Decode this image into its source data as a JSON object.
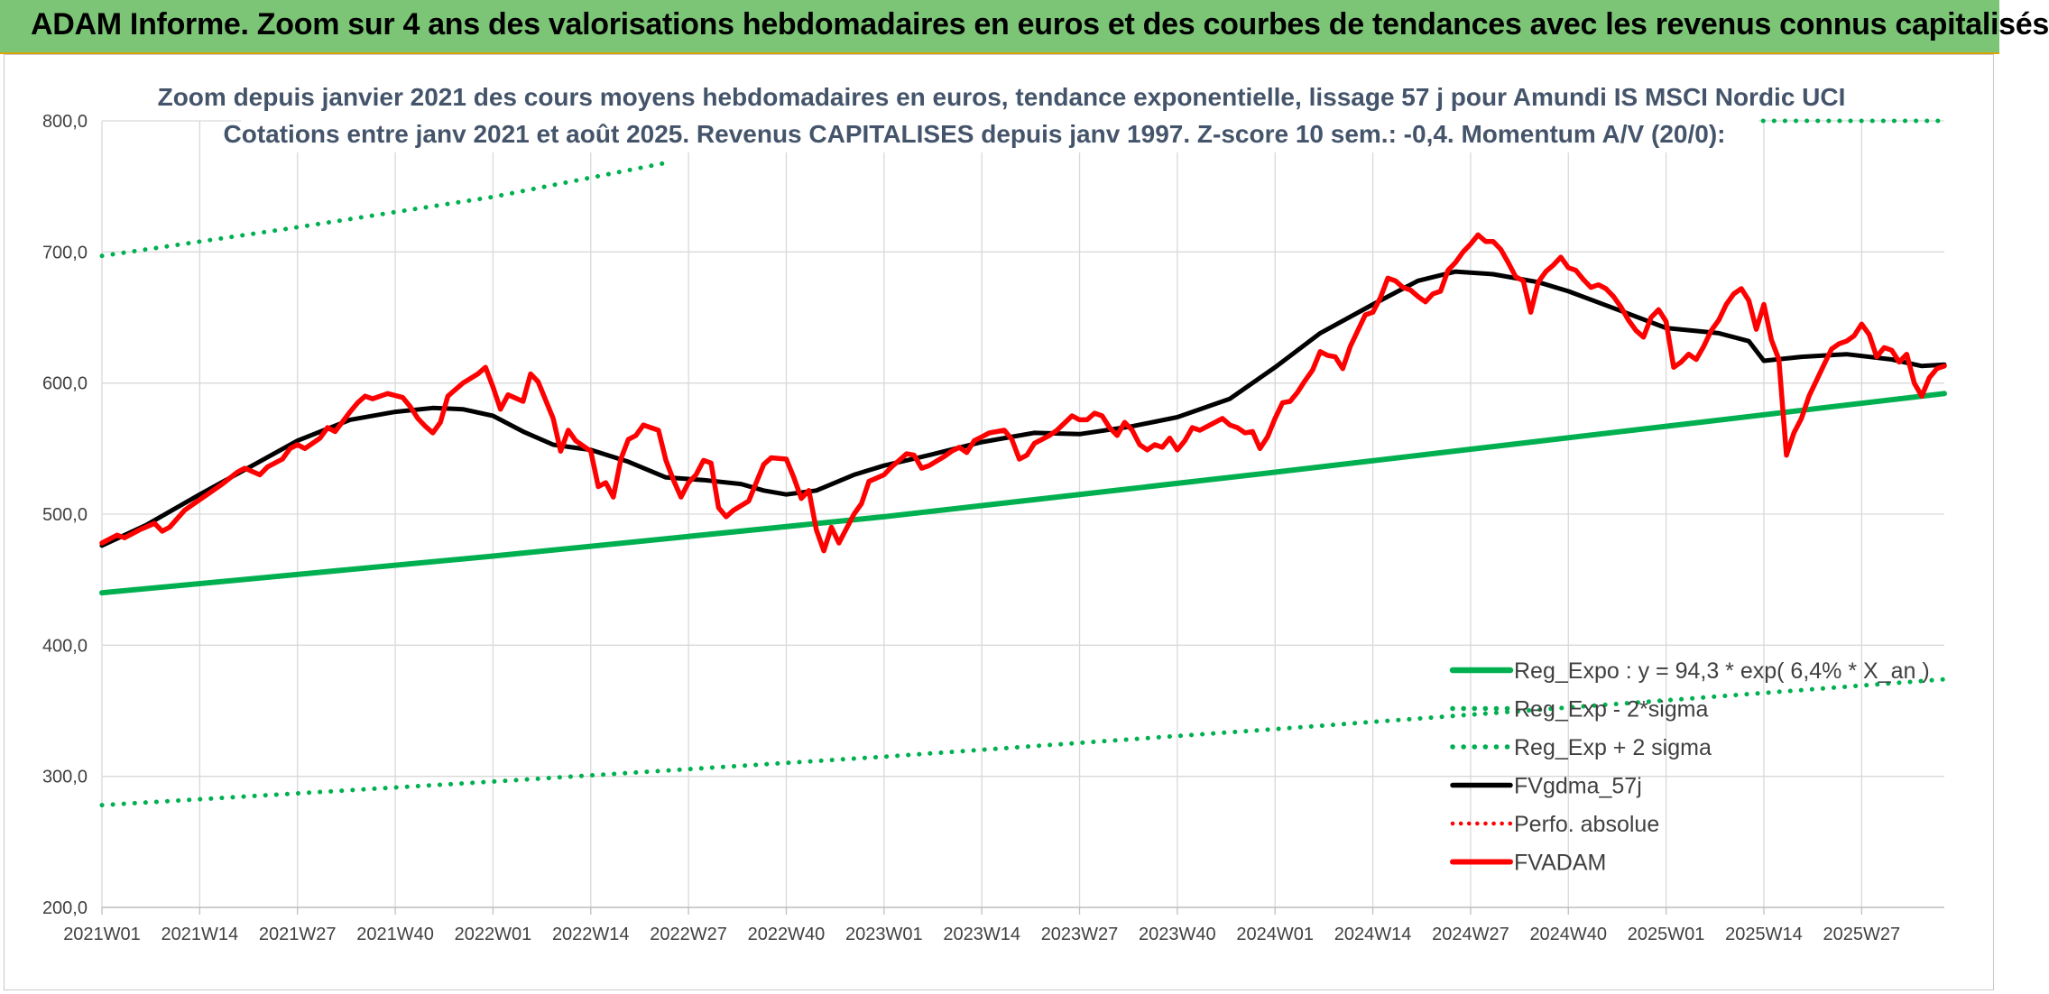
{
  "header": {
    "title": "ADAM Informe. Zoom sur 4 ans des valorisations hebdomadaires en euros et des courbes de tendances avec les revenus connus capitalisés"
  },
  "colors": {
    "banner": "#7cc576",
    "reg_expo": "#00b050",
    "fvgdma": "#000000",
    "fvadam": "#ff0000",
    "perfo": "#ff0000"
  },
  "chart_data": {
    "type": "line",
    "subtitle_line1": "Zoom depuis janvier 2021 des cours moyens hebdomadaires en euros, tendance exponentielle, lissage 57 j pour Amundi IS MSCI Nordic UCI",
    "subtitle_line2": "Cotations entre janv 2021 et août 2025. Revenus CAPITALISES depuis janv 1997. Z-score 10 sem.: -0,4. Momentum A/V (20/0):",
    "ylim": [
      200,
      800
    ],
    "y_ticks": [
      "800,0",
      "700,0",
      "600,0",
      "500,0",
      "400,0",
      "300,0",
      "200,0"
    ],
    "y_tick_values": [
      800,
      700,
      600,
      500,
      400,
      300,
      200
    ],
    "x_ticks": [
      "2021W01",
      "2021W14",
      "2021W27",
      "2021W40",
      "2022W01",
      "2022W14",
      "2022W27",
      "2022W40",
      "2023W01",
      "2023W14",
      "2023W27",
      "2023W40",
      "2024W01",
      "2024W14",
      "2024W27",
      "2024W40",
      "2025W01",
      "2025W14",
      "2025W27"
    ],
    "x_tick_index": [
      0,
      13,
      26,
      39,
      52,
      65,
      78,
      91,
      104,
      117,
      130,
      143,
      156,
      169,
      182,
      195,
      208,
      221,
      234
    ],
    "week_count": 245,
    "grid": true,
    "legend_position": "bottom-right",
    "legend": [
      {
        "label": "Reg_Expo : y = 94,3 * exp( 6,4% *  X_an )",
        "style": "solid-green"
      },
      {
        "label": "Reg_Exp - 2*sigma",
        "style": "dotted-green"
      },
      {
        "label": "Reg_Exp + 2 sigma",
        "style": "dotted-green"
      },
      {
        "label": "FVgdma_57j",
        "style": "solid-black"
      },
      {
        "label": "Perfo. absolue",
        "style": "dotted-red"
      },
      {
        "label": "FVADAM",
        "style": "solid-red"
      }
    ],
    "series": [
      {
        "name": "Reg_Expo : y = 94,3 * exp( 6,4% *  X_an )",
        "style": "solid-green",
        "points": [
          [
            0,
            440
          ],
          [
            52,
            468
          ],
          [
            104,
            498
          ],
          [
            156,
            532
          ],
          [
            208,
            567
          ],
          [
            245,
            592
          ]
        ]
      },
      {
        "name": "Reg_Exp - 2*sigma",
        "style": "dotted-green",
        "points": [
          [
            0,
            278
          ],
          [
            52,
            296
          ],
          [
            104,
            315
          ],
          [
            156,
            336
          ],
          [
            208,
            358
          ],
          [
            245,
            374
          ]
        ]
      },
      {
        "name": "Reg_Exp + 2 sigma",
        "style": "dotted-green",
        "clip_x_max": 75,
        "points": [
          [
            0,
            697
          ],
          [
            25,
            718
          ],
          [
            52,
            742
          ],
          [
            75,
            768
          ]
        ]
      },
      {
        "name": "Reg_Exp + 2 sigma",
        "style": "dotted-green",
        "clip_x_min": 218,
        "points": [
          [
            218,
            800
          ],
          [
            245,
            800
          ]
        ]
      },
      {
        "name": "FVgdma_57j",
        "style": "solid-black",
        "points": [
          [
            0,
            476
          ],
          [
            6,
            492
          ],
          [
            13,
            515
          ],
          [
            20,
            537
          ],
          [
            26,
            556
          ],
          [
            33,
            572
          ],
          [
            39,
            578
          ],
          [
            44,
            581
          ],
          [
            48,
            580
          ],
          [
            52,
            575
          ],
          [
            56,
            563
          ],
          [
            60,
            553
          ],
          [
            65,
            549
          ],
          [
            70,
            540
          ],
          [
            75,
            528
          ],
          [
            80,
            526
          ],
          [
            85,
            523
          ],
          [
            88,
            518
          ],
          [
            91,
            515
          ],
          [
            95,
            518
          ],
          [
            100,
            530
          ],
          [
            104,
            537
          ],
          [
            110,
            545
          ],
          [
            117,
            555
          ],
          [
            124,
            562
          ],
          [
            130,
            561
          ],
          [
            137,
            567
          ],
          [
            143,
            574
          ],
          [
            150,
            588
          ],
          [
            156,
            612
          ],
          [
            162,
            638
          ],
          [
            169,
            660
          ],
          [
            175,
            678
          ],
          [
            180,
            685
          ],
          [
            185,
            683
          ],
          [
            191,
            677
          ],
          [
            195,
            670
          ],
          [
            202,
            655
          ],
          [
            208,
            642
          ],
          [
            215,
            638
          ],
          [
            219,
            632
          ],
          [
            221,
            617
          ],
          [
            226,
            620
          ],
          [
            232,
            622
          ],
          [
            238,
            618
          ],
          [
            242,
            613
          ],
          [
            245,
            614
          ]
        ]
      },
      {
        "name": "FVADAM",
        "style": "solid-red",
        "points": [
          [
            0,
            478
          ],
          [
            2,
            484
          ],
          [
            3,
            482
          ],
          [
            5,
            488
          ],
          [
            7,
            493
          ],
          [
            8,
            487
          ],
          [
            9,
            490
          ],
          [
            11,
            503
          ],
          [
            12,
            507
          ],
          [
            14,
            515
          ],
          [
            16,
            523
          ],
          [
            18,
            532
          ],
          [
            19,
            535
          ],
          [
            21,
            530
          ],
          [
            22,
            536
          ],
          [
            24,
            542
          ],
          [
            25,
            550
          ],
          [
            26,
            553
          ],
          [
            27,
            550
          ],
          [
            29,
            558
          ],
          [
            30,
            566
          ],
          [
            31,
            563
          ],
          [
            33,
            578
          ],
          [
            34,
            585
          ],
          [
            35,
            590
          ],
          [
            36,
            588
          ],
          [
            38,
            592
          ],
          [
            40,
            589
          ],
          [
            41,
            582
          ],
          [
            42,
            573
          ],
          [
            43,
            567
          ],
          [
            44,
            562
          ],
          [
            45,
            570
          ],
          [
            46,
            590
          ],
          [
            48,
            600
          ],
          [
            50,
            607
          ],
          [
            51,
            612
          ],
          [
            52,
            597
          ],
          [
            53,
            580
          ],
          [
            54,
            591
          ],
          [
            56,
            586
          ],
          [
            57,
            607
          ],
          [
            58,
            601
          ],
          [
            60,
            573
          ],
          [
            61,
            548
          ],
          [
            62,
            564
          ],
          [
            63,
            556
          ],
          [
            65,
            548
          ],
          [
            66,
            521
          ],
          [
            67,
            524
          ],
          [
            68,
            513
          ],
          [
            69,
            542
          ],
          [
            70,
            557
          ],
          [
            71,
            560
          ],
          [
            72,
            568
          ],
          [
            73,
            566
          ],
          [
            74,
            564
          ],
          [
            75,
            541
          ],
          [
            76,
            526
          ],
          [
            77,
            513
          ],
          [
            78,
            524
          ],
          [
            79,
            530
          ],
          [
            80,
            541
          ],
          [
            81,
            539
          ],
          [
            82,
            505
          ],
          [
            83,
            498
          ],
          [
            84,
            503
          ],
          [
            86,
            510
          ],
          [
            88,
            538
          ],
          [
            89,
            543
          ],
          [
            91,
            542
          ],
          [
            92,
            528
          ],
          [
            93,
            512
          ],
          [
            94,
            518
          ],
          [
            95,
            488
          ],
          [
            96,
            472
          ],
          [
            97,
            490
          ],
          [
            98,
            478
          ],
          [
            100,
            500
          ],
          [
            101,
            508
          ],
          [
            102,
            525
          ],
          [
            104,
            530
          ],
          [
            105,
            536
          ],
          [
            106,
            541
          ],
          [
            107,
            546
          ],
          [
            108,
            545
          ],
          [
            109,
            535
          ],
          [
            110,
            537
          ],
          [
            112,
            544
          ],
          [
            113,
            548
          ],
          [
            114,
            551
          ],
          [
            115,
            547
          ],
          [
            116,
            556
          ],
          [
            117,
            559
          ],
          [
            118,
            562
          ],
          [
            120,
            564
          ],
          [
            121,
            557
          ],
          [
            122,
            542
          ],
          [
            123,
            545
          ],
          [
            124,
            554
          ],
          [
            126,
            560
          ],
          [
            127,
            564
          ],
          [
            129,
            575
          ],
          [
            130,
            572
          ],
          [
            131,
            572
          ],
          [
            132,
            577
          ],
          [
            133,
            575
          ],
          [
            134,
            566
          ],
          [
            135,
            560
          ],
          [
            136,
            570
          ],
          [
            137,
            564
          ],
          [
            138,
            553
          ],
          [
            139,
            549
          ],
          [
            140,
            553
          ],
          [
            141,
            551
          ],
          [
            142,
            558
          ],
          [
            143,
            549
          ],
          [
            144,
            556
          ],
          [
            145,
            566
          ],
          [
            146,
            564
          ],
          [
            148,
            570
          ],
          [
            149,
            573
          ],
          [
            150,
            568
          ],
          [
            151,
            566
          ],
          [
            152,
            562
          ],
          [
            153,
            563
          ],
          [
            154,
            550
          ],
          [
            155,
            559
          ],
          [
            156,
            573
          ],
          [
            157,
            585
          ],
          [
            158,
            586
          ],
          [
            159,
            593
          ],
          [
            160,
            602
          ],
          [
            161,
            610
          ],
          [
            162,
            624
          ],
          [
            163,
            621
          ],
          [
            164,
            620
          ],
          [
            165,
            611
          ],
          [
            166,
            628
          ],
          [
            167,
            640
          ],
          [
            168,
            652
          ],
          [
            169,
            654
          ],
          [
            170,
            665
          ],
          [
            171,
            680
          ],
          [
            172,
            678
          ],
          [
            173,
            673
          ],
          [
            174,
            671
          ],
          [
            175,
            666
          ],
          [
            176,
            662
          ],
          [
            177,
            668
          ],
          [
            178,
            670
          ],
          [
            179,
            686
          ],
          [
            180,
            692
          ],
          [
            181,
            700
          ],
          [
            182,
            706
          ],
          [
            183,
            713
          ],
          [
            184,
            708
          ],
          [
            185,
            708
          ],
          [
            186,
            702
          ],
          [
            187,
            692
          ],
          [
            188,
            681
          ],
          [
            189,
            678
          ],
          [
            190,
            654
          ],
          [
            191,
            677
          ],
          [
            192,
            685
          ],
          [
            193,
            690
          ],
          [
            194,
            696
          ],
          [
            195,
            688
          ],
          [
            196,
            686
          ],
          [
            197,
            679
          ],
          [
            198,
            673
          ],
          [
            199,
            675
          ],
          [
            200,
            672
          ],
          [
            201,
            666
          ],
          [
            202,
            658
          ],
          [
            203,
            648
          ],
          [
            204,
            640
          ],
          [
            205,
            635
          ],
          [
            206,
            650
          ],
          [
            207,
            656
          ],
          [
            208,
            647
          ],
          [
            209,
            612
          ],
          [
            210,
            616
          ],
          [
            211,
            622
          ],
          [
            212,
            618
          ],
          [
            213,
            628
          ],
          [
            214,
            640
          ],
          [
            215,
            648
          ],
          [
            216,
            660
          ],
          [
            217,
            668
          ],
          [
            218,
            672
          ],
          [
            219,
            663
          ],
          [
            220,
            641
          ],
          [
            221,
            660
          ],
          [
            222,
            633
          ],
          [
            223,
            618
          ],
          [
            224,
            545
          ],
          [
            225,
            562
          ],
          [
            226,
            573
          ],
          [
            227,
            590
          ],
          [
            228,
            602
          ],
          [
            229,
            614
          ],
          [
            230,
            626
          ],
          [
            231,
            630
          ],
          [
            232,
            632
          ],
          [
            233,
            636
          ],
          [
            234,
            645
          ],
          [
            235,
            637
          ],
          [
            236,
            620
          ],
          [
            237,
            627
          ],
          [
            238,
            625
          ],
          [
            239,
            616
          ],
          [
            240,
            622
          ],
          [
            241,
            600
          ],
          [
            242,
            590
          ],
          [
            243,
            604
          ],
          [
            244,
            611
          ],
          [
            245,
            613
          ]
        ]
      }
    ]
  }
}
